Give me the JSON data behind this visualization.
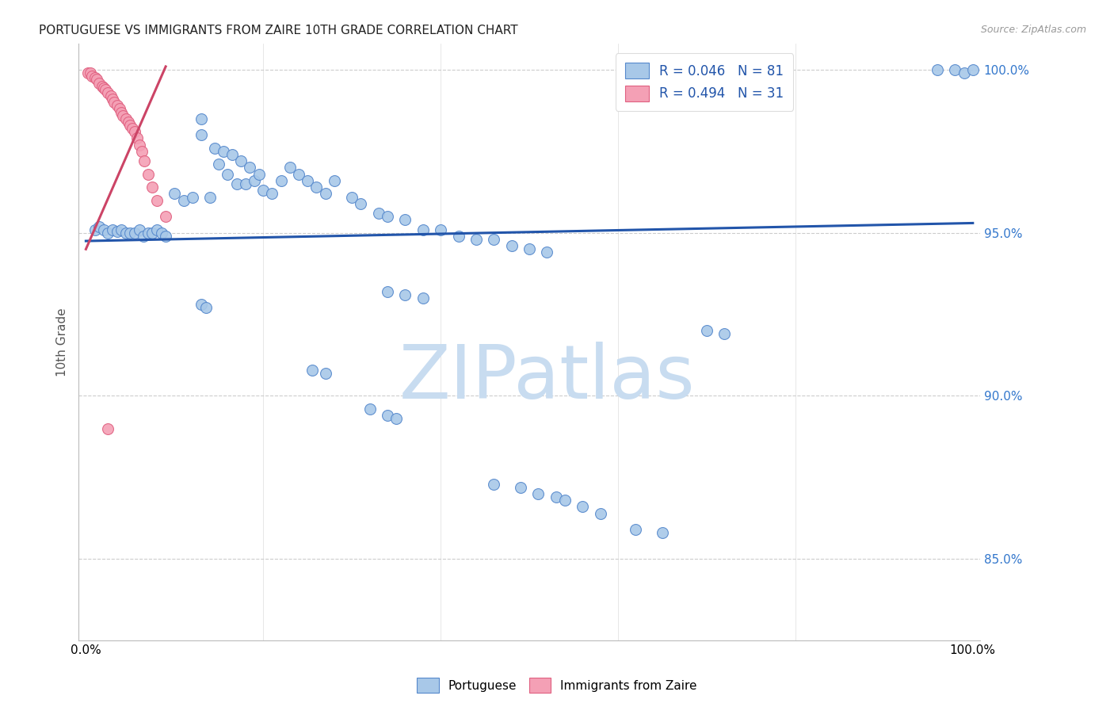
{
  "title": "PORTUGUESE VS IMMIGRANTS FROM ZAIRE 10TH GRADE CORRELATION CHART",
  "source": "Source: ZipAtlas.com",
  "ylabel": "10th Grade",
  "watermark": "ZIPatlas",
  "blue_label": "Portuguese",
  "pink_label": "Immigrants from Zaire",
  "blue_R": "R = 0.046",
  "blue_N": "N = 81",
  "pink_R": "R = 0.494",
  "pink_N": "N = 31",
  "ylim": [
    0.825,
    1.008
  ],
  "xlim": [
    -0.008,
    1.008
  ],
  "yticks": [
    0.85,
    0.9,
    0.95,
    1.0
  ],
  "ytick_labels": [
    "85.0%",
    "90.0%",
    "95.0%",
    "100.0%"
  ],
  "xticks": [
    0.0,
    0.2,
    0.4,
    0.6,
    0.8,
    1.0
  ],
  "xtick_labels": [
    "0.0%",
    "",
    "",
    "",
    "",
    "100.0%"
  ],
  "blue_color": "#A8C8E8",
  "pink_color": "#F4A0B5",
  "blue_edge_color": "#5588CC",
  "pink_edge_color": "#E06080",
  "blue_line_color": "#2255AA",
  "pink_line_color": "#CC4466",
  "grid_color": "#CCCCCC",
  "title_color": "#222222",
  "axis_label_color": "#555555",
  "right_axis_color": "#3377CC",
  "watermark_color": "#C8DCF0",
  "blue_scatter_x": [
    0.01,
    0.015,
    0.02,
    0.025,
    0.03,
    0.035,
    0.04,
    0.045,
    0.05,
    0.055,
    0.06,
    0.065,
    0.07,
    0.075,
    0.08,
    0.085,
    0.09,
    0.1,
    0.11,
    0.12,
    0.13,
    0.14,
    0.15,
    0.16,
    0.17,
    0.18,
    0.19,
    0.2,
    0.21,
    0.22,
    0.23,
    0.24,
    0.25,
    0.26,
    0.27,
    0.13,
    0.145,
    0.155,
    0.165,
    0.175,
    0.185,
    0.195,
    0.28,
    0.3,
    0.31,
    0.33,
    0.34,
    0.36,
    0.38,
    0.4,
    0.42,
    0.44,
    0.46,
    0.48,
    0.5,
    0.52,
    0.34,
    0.36,
    0.38,
    0.7,
    0.72,
    0.96,
    0.98,
    0.99,
    1.0,
    0.13,
    0.135,
    0.255,
    0.27,
    0.32,
    0.34,
    0.35,
    0.46,
    0.49,
    0.51,
    0.53,
    0.54,
    0.56,
    0.58,
    0.62,
    0.65
  ],
  "blue_scatter_y": [
    0.951,
    0.952,
    0.951,
    0.95,
    0.951,
    0.9505,
    0.951,
    0.95,
    0.95,
    0.95,
    0.951,
    0.949,
    0.95,
    0.95,
    0.951,
    0.95,
    0.949,
    0.962,
    0.96,
    0.961,
    0.985,
    0.961,
    0.971,
    0.968,
    0.965,
    0.965,
    0.966,
    0.963,
    0.962,
    0.966,
    0.97,
    0.968,
    0.966,
    0.964,
    0.962,
    0.98,
    0.976,
    0.975,
    0.974,
    0.972,
    0.97,
    0.968,
    0.966,
    0.961,
    0.959,
    0.956,
    0.955,
    0.954,
    0.951,
    0.951,
    0.949,
    0.948,
    0.948,
    0.946,
    0.945,
    0.944,
    0.932,
    0.931,
    0.93,
    0.92,
    0.919,
    1.0,
    1.0,
    0.999,
    1.0,
    0.928,
    0.927,
    0.908,
    0.907,
    0.896,
    0.894,
    0.893,
    0.873,
    0.872,
    0.87,
    0.869,
    0.868,
    0.866,
    0.864,
    0.859,
    0.858
  ],
  "pink_scatter_x": [
    0.002,
    0.005,
    0.007,
    0.01,
    0.012,
    0.015,
    0.018,
    0.02,
    0.022,
    0.025,
    0.028,
    0.03,
    0.032,
    0.035,
    0.038,
    0.04,
    0.042,
    0.045,
    0.048,
    0.05,
    0.052,
    0.055,
    0.058,
    0.06,
    0.063,
    0.066,
    0.07,
    0.075,
    0.08,
    0.09,
    0.025
  ],
  "pink_scatter_y": [
    0.999,
    0.999,
    0.998,
    0.9975,
    0.997,
    0.996,
    0.995,
    0.9945,
    0.994,
    0.993,
    0.992,
    0.991,
    0.99,
    0.989,
    0.988,
    0.987,
    0.986,
    0.985,
    0.984,
    0.983,
    0.982,
    0.981,
    0.979,
    0.977,
    0.975,
    0.972,
    0.968,
    0.964,
    0.96,
    0.955,
    0.89
  ],
  "blue_trend_x": [
    0.0,
    1.0
  ],
  "blue_trend_y": [
    0.9475,
    0.953
  ],
  "pink_trend_x": [
    0.0,
    0.09
  ],
  "pink_trend_y": [
    0.945,
    1.001
  ]
}
